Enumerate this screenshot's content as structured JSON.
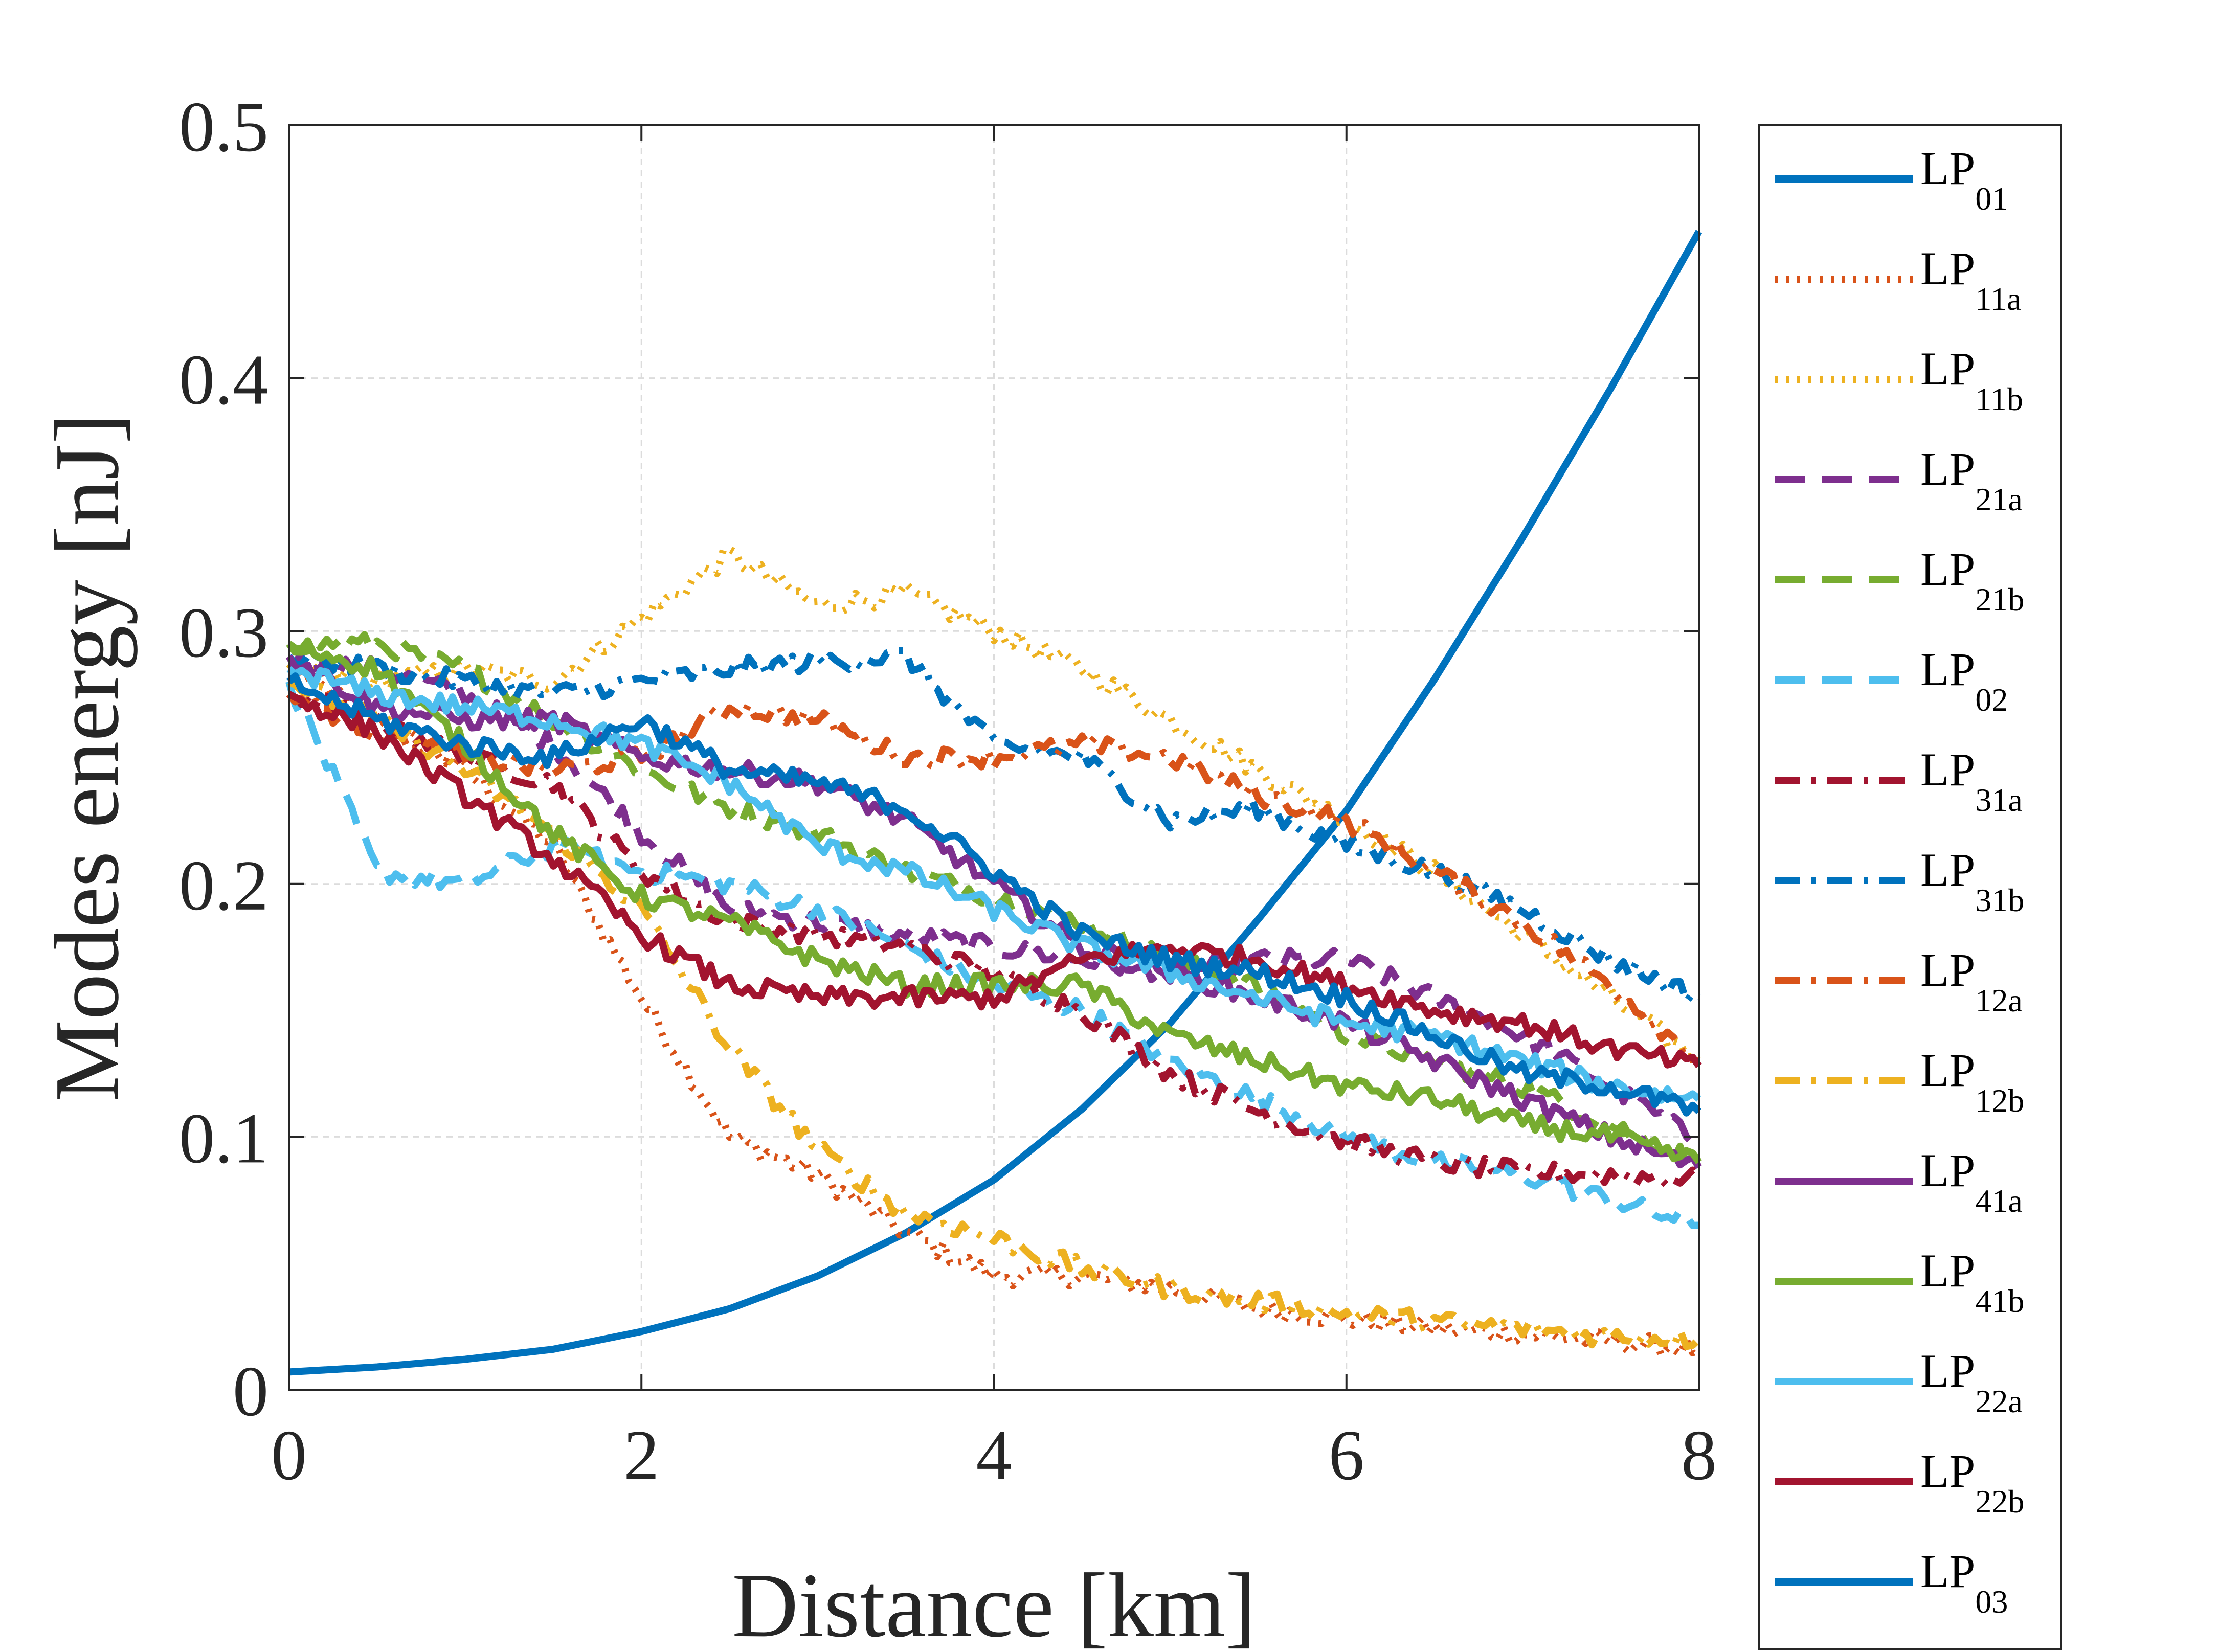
{
  "chart_data": {
    "type": "line",
    "xlabel": "Distance [km]",
    "ylabel": "Modes energy [nJ]",
    "xlim": [
      0,
      8
    ],
    "ylim": [
      0,
      0.5
    ],
    "x_ticks": [
      "0",
      "2",
      "4",
      "6",
      "8"
    ],
    "y_ticks": [
      "0",
      "0.1",
      "0.2",
      "0.3",
      "0.4",
      "0.5"
    ],
    "grid": true,
    "legend_position": "outside-right",
    "x": [
      0,
      0.5,
      1,
      1.5,
      2,
      2.5,
      3,
      3.5,
      4,
      4.5,
      5,
      5.5,
      6,
      6.5,
      7,
      7.5,
      8
    ],
    "series": [
      {
        "name": "LP",
        "sub": "01",
        "color": "#0072BD",
        "dash": "solid",
        "smooth": true,
        "values": [
          0.007,
          0.009,
          0.012,
          0.016,
          0.023,
          0.032,
          0.045,
          0.062,
          0.083,
          0.111,
          0.145,
          0.186,
          0.229,
          0.281,
          0.337,
          0.396,
          0.458
        ]
      },
      {
        "name": "LP",
        "sub": "11a",
        "color": "#D95319",
        "dash": "dot",
        "values": [
          0.285,
          0.265,
          0.245,
          0.215,
          0.155,
          0.1,
          0.085,
          0.062,
          0.045,
          0.045,
          0.04,
          0.032,
          0.028,
          0.024,
          0.022,
          0.019,
          0.016
        ]
      },
      {
        "name": "LP",
        "sub": "11b",
        "color": "#EDB120",
        "dash": "dot",
        "values": [
          0.285,
          0.28,
          0.285,
          0.28,
          0.305,
          0.33,
          0.31,
          0.315,
          0.3,
          0.285,
          0.265,
          0.245,
          0.225,
          0.205,
          0.18,
          0.155,
          0.13
        ]
      },
      {
        "name": "LP",
        "sub": "21a",
        "color": "#7E2F8E",
        "dash": "dash",
        "values": [
          0.29,
          0.285,
          0.275,
          0.255,
          0.22,
          0.19,
          0.185,
          0.18,
          0.175,
          0.17,
          0.165,
          0.17,
          0.17,
          0.155,
          0.14,
          0.12,
          0.098
        ]
      },
      {
        "name": "LP",
        "sub": "21b",
        "color": "#77AC30",
        "dash": "dash",
        "values": [
          0.295,
          0.295,
          0.285,
          0.265,
          0.245,
          0.23,
          0.22,
          0.205,
          0.195,
          0.185,
          0.17,
          0.16,
          0.14,
          0.13,
          0.12,
          0.105,
          0.09
        ]
      },
      {
        "name": "LP",
        "sub": "02",
        "color": "#4DBEEE",
        "dash": "dash",
        "values": [
          0.28,
          0.205,
          0.2,
          0.215,
          0.205,
          0.2,
          0.19,
          0.175,
          0.16,
          0.15,
          0.13,
          0.115,
          0.1,
          0.09,
          0.085,
          0.075,
          0.065
        ]
      },
      {
        "name": "LP",
        "sub": "31a",
        "color": "#A2142F",
        "dash": "dashdot",
        "values": [
          0.275,
          0.265,
          0.25,
          0.24,
          0.205,
          0.185,
          0.18,
          0.175,
          0.165,
          0.15,
          0.125,
          0.11,
          0.098,
          0.09,
          0.086,
          0.085,
          0.083
        ]
      },
      {
        "name": "LP",
        "sub": "31b",
        "color": "#0072BD",
        "dash": "dashdot",
        "values": [
          0.29,
          0.285,
          0.28,
          0.275,
          0.28,
          0.285,
          0.288,
          0.29,
          0.255,
          0.25,
          0.225,
          0.23,
          0.215,
          0.205,
          0.19,
          0.17,
          0.155
        ]
      },
      {
        "name": "LP",
        "sub": "12a",
        "color": "#D95319",
        "dash": "dashdot",
        "values": [
          0.275,
          0.26,
          0.25,
          0.245,
          0.25,
          0.27,
          0.265,
          0.25,
          0.25,
          0.255,
          0.25,
          0.235,
          0.225,
          0.205,
          0.185,
          0.16,
          0.13
        ]
      },
      {
        "name": "LP",
        "sub": "12b",
        "color": "#EDB120",
        "dash": "dashdot",
        "values": [
          0.28,
          0.265,
          0.245,
          0.22,
          0.19,
          0.135,
          0.095,
          0.07,
          0.06,
          0.048,
          0.04,
          0.035,
          0.03,
          0.027,
          0.024,
          0.021,
          0.02
        ]
      },
      {
        "name": "LP",
        "sub": "41a",
        "color": "#7E2F8E",
        "dash": "solid",
        "values": [
          0.29,
          0.27,
          0.265,
          0.265,
          0.25,
          0.245,
          0.24,
          0.225,
          0.2,
          0.175,
          0.165,
          0.155,
          0.145,
          0.13,
          0.115,
          0.1,
          0.088
        ]
      },
      {
        "name": "LP",
        "sub": "41b",
        "color": "#77AC30",
        "dash": "solid",
        "values": [
          0.295,
          0.285,
          0.255,
          0.22,
          0.195,
          0.185,
          0.17,
          0.16,
          0.16,
          0.16,
          0.14,
          0.13,
          0.12,
          0.115,
          0.105,
          0.1,
          0.09
        ]
      },
      {
        "name": "LP",
        "sub": "22a",
        "color": "#4DBEEE",
        "dash": "solid",
        "values": [
          0.285,
          0.275,
          0.27,
          0.265,
          0.255,
          0.24,
          0.215,
          0.205,
          0.19,
          0.175,
          0.165,
          0.155,
          0.145,
          0.14,
          0.13,
          0.12,
          0.115
        ]
      },
      {
        "name": "LP",
        "sub": "22b",
        "color": "#A2142F",
        "dash": "solid",
        "values": [
          0.275,
          0.26,
          0.235,
          0.21,
          0.18,
          0.16,
          0.155,
          0.155,
          0.155,
          0.17,
          0.175,
          0.17,
          0.16,
          0.15,
          0.145,
          0.135,
          0.128
        ]
      },
      {
        "name": "LP",
        "sub": "03",
        "color": "#0072BD",
        "dash": "solid",
        "values": [
          0.28,
          0.265,
          0.255,
          0.25,
          0.265,
          0.245,
          0.24,
          0.23,
          0.205,
          0.18,
          0.17,
          0.165,
          0.155,
          0.14,
          0.125,
          0.12,
          0.11
        ]
      }
    ]
  }
}
